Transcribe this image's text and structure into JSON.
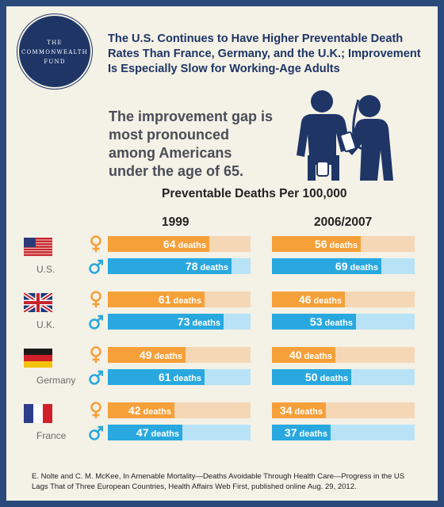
{
  "logo": {
    "line1": "THE",
    "line2": "COMMONWEALTH",
    "line3": "FUND"
  },
  "title": "The U.S. Continues to Have Higher Preventable Death Rates Than France, Germany, and the U.K.; Improvement Is Especially Slow for Working-Age Adults",
  "subtitle": "The improvement gap is most pronounced among Americans under the age of 65.",
  "colors": {
    "female": "#f6a03a",
    "male": "#29a8df",
    "female_track": "#f5d7b6",
    "male_track": "#b8e3f6",
    "navy": "#1e3566"
  },
  "chart_data": {
    "type": "bar",
    "title": "Preventable Deaths Per 100,000",
    "periods": [
      "1999",
      "2006/2007"
    ],
    "unit": "deaths",
    "axis_max": 90,
    "countries": [
      {
        "name": "U.S.",
        "female": [
          64,
          56
        ],
        "male": [
          78,
          69
        ]
      },
      {
        "name": "U.K.",
        "female": [
          61,
          46
        ],
        "male": [
          73,
          53
        ]
      },
      {
        "name": "Germany",
        "female": [
          49,
          40
        ],
        "male": [
          61,
          50
        ]
      },
      {
        "name": "France",
        "female": [
          42,
          34
        ],
        "male": [
          47,
          37
        ]
      }
    ]
  },
  "source": "E. Nolte and C. M. McKee, In Amenable Mortality—Deaths Avoidable Through Health Care—Progress in the US Lags That of Three European Countries, Health Affairs Web First, published online Aug. 29, 2012."
}
